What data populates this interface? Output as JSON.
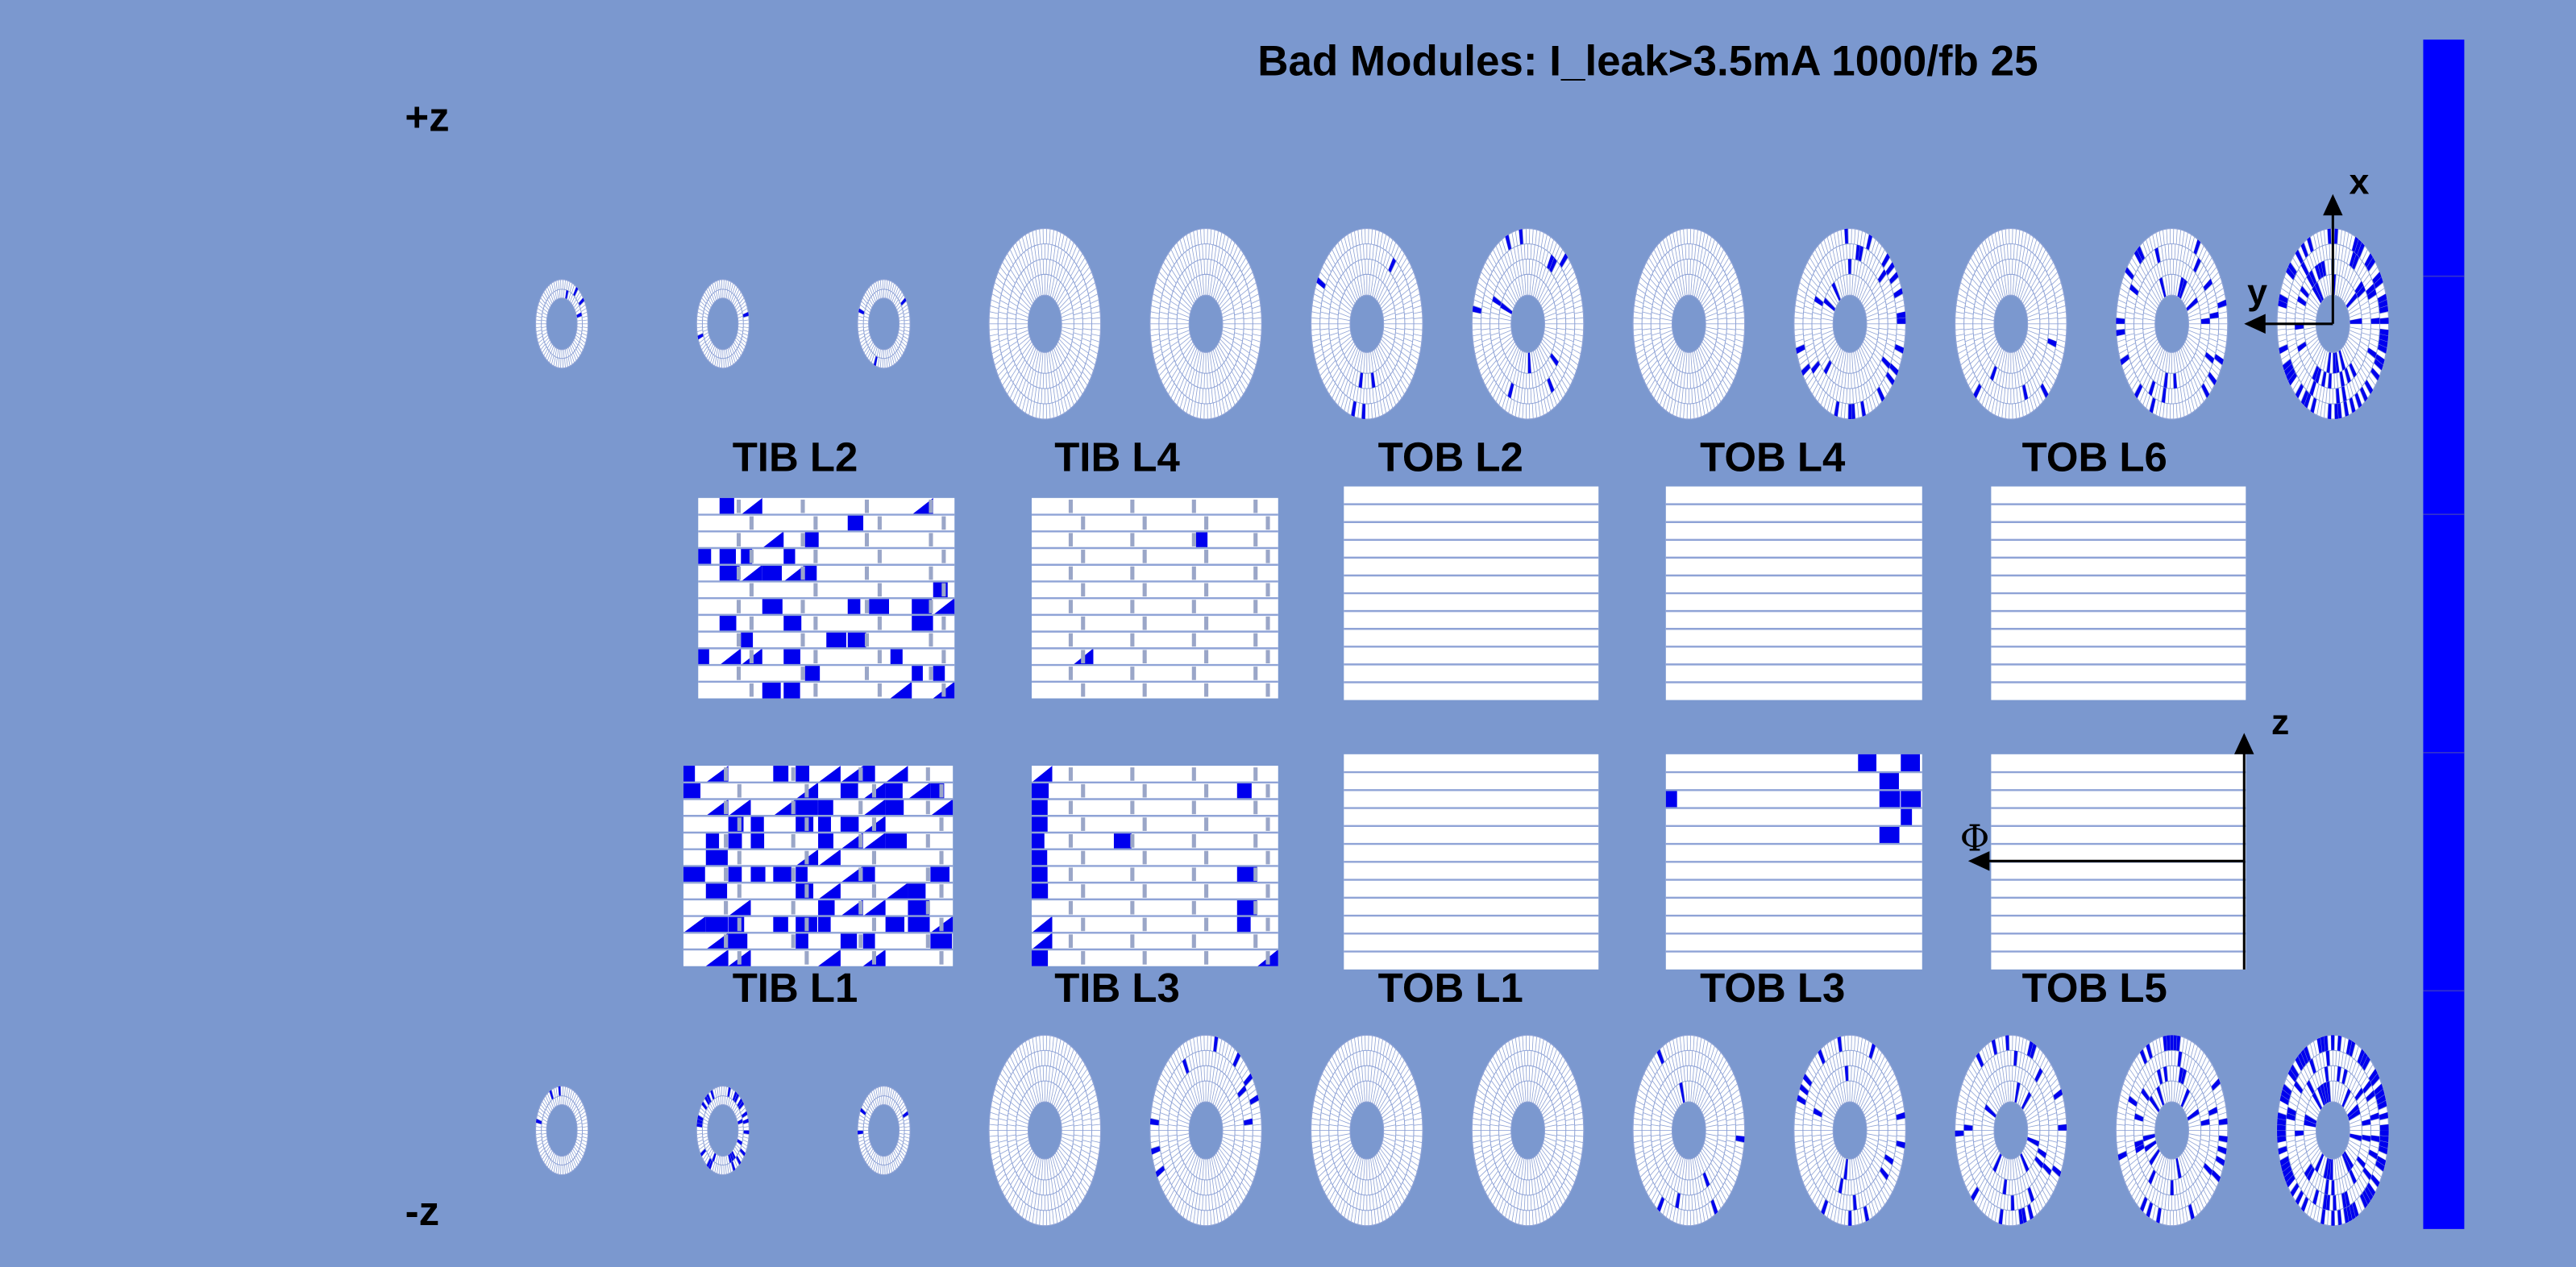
{
  "title": "Bad Modules: I_leak>3.5mA 1000/fb 25",
  "z_labels": {
    "plus": "+z",
    "minus": "-z"
  },
  "layers": {
    "top": [
      "TIB L2",
      "TIB L4",
      "TOB L2",
      "TOB L4",
      "TOB L6"
    ],
    "bottom": [
      "TIB L1",
      "TIB L3",
      "TOB L1",
      "TOB L3",
      "TOB L5"
    ]
  },
  "axes": {
    "x": "x",
    "y": "y",
    "z": "z",
    "phi": "Φ"
  }
}
